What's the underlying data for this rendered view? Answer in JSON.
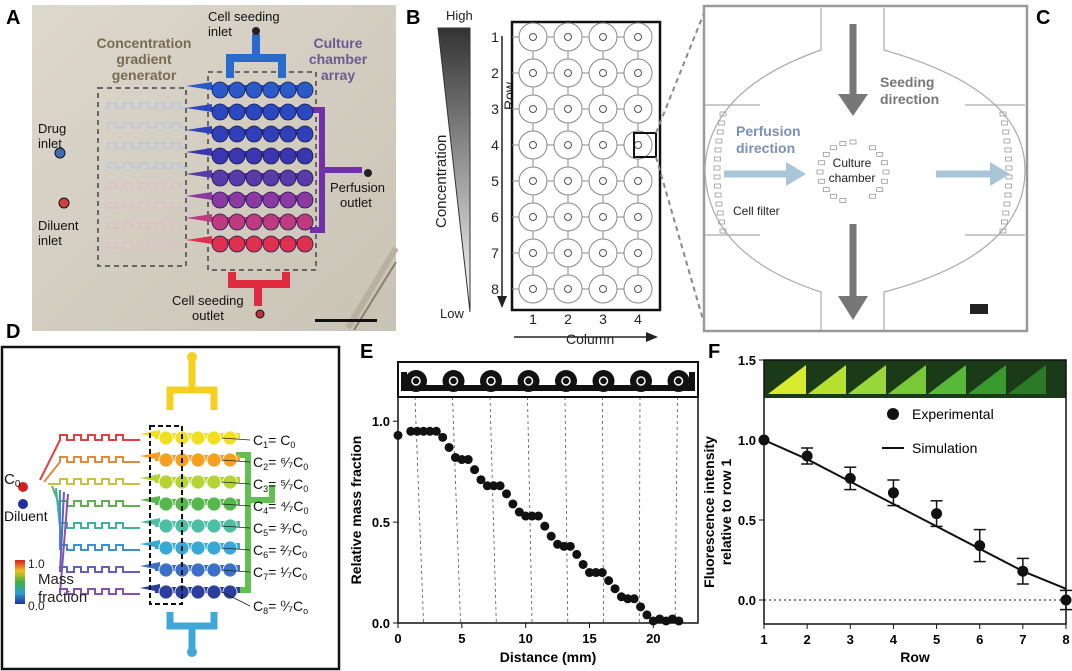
{
  "panels": {
    "a": {
      "letter": "A",
      "cell_seeding_inlet_1": "Cell seeding",
      "cell_seeding_inlet_2": "inlet",
      "cgg_1": "Concentration",
      "cgg_2": "gradient",
      "cgg_3": "generator",
      "cca_1": "Culture",
      "cca_2": "chamber",
      "cca_3": "array",
      "drug_1": "Drug",
      "drug_2": "inlet",
      "diluent_1": "Diluent",
      "diluent_2": "inlet",
      "perfusion_1": "Perfusion",
      "perfusion_2": "outlet",
      "seed_out_1": "Cell seeding",
      "seed_out_2": "outlet"
    },
    "b": {
      "letter": "B",
      "high": "High",
      "low": "Low",
      "concentration": "Concentration",
      "row_axis": "Row",
      "column_axis": "Column",
      "rows": [
        "1",
        "2",
        "3",
        "4",
        "5",
        "6",
        "7",
        "8"
      ],
      "columns": [
        "1",
        "2",
        "3",
        "4"
      ]
    },
    "c": {
      "letter": "C",
      "seeding_1": "Seeding",
      "seeding_2": "direction",
      "perfusion_1": "Perfusion",
      "perfusion_2": "direction",
      "culture_1": "Culture",
      "culture_2": "chamber",
      "cell_filter": "Cell filter"
    },
    "d": {
      "letter": "D",
      "c0_label": "C",
      "c0_sub": "0",
      "diluent": "Diluent",
      "legend_max": "1.0",
      "legend_min": "0.0",
      "legend_title_1": "Mass",
      "legend_title_2": "fraction",
      "eq_main": [
        "C",
        "C",
        "C",
        "C",
        "C",
        "C",
        "C",
        "C"
      ],
      "eq_sub": [
        "1",
        "2",
        "3",
        "4",
        "5",
        "6",
        "7",
        "8"
      ],
      "eq_rhs": [
        "= C",
        "= ⁶⁄₇C",
        "= ⁵⁄₇C",
        "= ⁴⁄₇C",
        "= ³⁄₇C",
        "= ²⁄₇C",
        "= ¹⁄₇C",
        "= ⁰⁄₇C"
      ],
      "eq_rhs_sub": [
        "0",
        "0",
        "0",
        "0",
        "0",
        "0",
        "0",
        "o"
      ]
    }
  },
  "colors": {
    "row_colors": [
      "#f0e020",
      "#f5a020",
      "#b7d334",
      "#55b84a",
      "#4cbfa5",
      "#38a9d6",
      "#3b6fc8",
      "#2a3f9e"
    ],
    "photo_rows": [
      "#2a5ac8",
      "#2a48c0",
      "#3040b8",
      "#3a36b0",
      "#5a3aa8",
      "#8a3aa0",
      "#c03a80",
      "#e03050"
    ],
    "dark_gray": "#777777",
    "light_blue": "#a9c6d8"
  },
  "chart_data": [
    {
      "panel": "E",
      "type": "scatter",
      "title": "",
      "xlabel": "Distance (mm)",
      "ylabel": "Relative mass fraction",
      "xlim": [
        0,
        23.5
      ],
      "ylim": [
        0,
        1.12
      ],
      "xticks": [
        "0",
        "5",
        "10",
        "15",
        "20"
      ],
      "yticks": [
        "0.0",
        "0.5",
        "1.0"
      ],
      "x": [
        0,
        1,
        1.5,
        2,
        2.5,
        3,
        3.5,
        4,
        4.5,
        5,
        5.5,
        6,
        6.5,
        7,
        7.5,
        8,
        8.5,
        9,
        9.5,
        10,
        10.5,
        11,
        11.5,
        12,
        12.5,
        13,
        13.5,
        14,
        14.5,
        15,
        15.5,
        16,
        16.5,
        17,
        17.5,
        18,
        18.5,
        19,
        19.5,
        20,
        20.5,
        21,
        21.5,
        22
      ],
      "y": [
        0.93,
        0.95,
        0.95,
        0.95,
        0.95,
        0.95,
        0.92,
        0.87,
        0.82,
        0.81,
        0.81,
        0.76,
        0.71,
        0.68,
        0.68,
        0.68,
        0.64,
        0.59,
        0.55,
        0.53,
        0.53,
        0.53,
        0.48,
        0.43,
        0.39,
        0.38,
        0.38,
        0.34,
        0.29,
        0.25,
        0.25,
        0.25,
        0.21,
        0.17,
        0.13,
        0.12,
        0.12,
        0.08,
        0.04,
        0.01,
        0.02,
        0.01,
        0.02,
        0.01
      ]
    },
    {
      "panel": "F",
      "type": "line",
      "title": "",
      "xlabel": "Row",
      "ylabel_1": "Fluorescence intensity",
      "ylabel_2": "relative to row 1",
      "xlim": [
        1,
        8
      ],
      "ylim": [
        -0.15,
        1.5
      ],
      "xticks": [
        "1",
        "2",
        "3",
        "4",
        "5",
        "6",
        "7",
        "8"
      ],
      "yticks": [
        "0.0",
        "0.5",
        "1.0",
        "1.5"
      ],
      "series": [
        {
          "name": "Experimental",
          "x": [
            1,
            2,
            3,
            4,
            5,
            6,
            7,
            8
          ],
          "values": [
            1.0,
            0.9,
            0.76,
            0.67,
            0.54,
            0.34,
            0.18,
            0.0
          ],
          "errors": [
            0,
            0.05,
            0.07,
            0.08,
            0.08,
            0.1,
            0.08,
            0.06
          ]
        },
        {
          "name": "Simulation",
          "x": [
            1,
            2,
            3,
            4,
            5,
            6,
            7,
            8
          ],
          "values": [
            1.0,
            0.88,
            0.74,
            0.6,
            0.46,
            0.32,
            0.18,
            0.07
          ]
        }
      ]
    }
  ],
  "e_extra": {
    "letter": "E"
  },
  "f_extra": {
    "letter": "F"
  }
}
